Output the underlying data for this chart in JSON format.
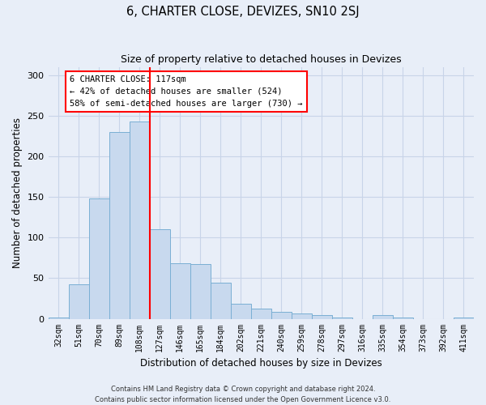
{
  "title": "6, CHARTER CLOSE, DEVIZES, SN10 2SJ",
  "subtitle": "Size of property relative to detached houses in Devizes",
  "xlabel": "Distribution of detached houses by size in Devizes",
  "ylabel": "Number of detached properties",
  "categories": [
    "32sqm",
    "51sqm",
    "70sqm",
    "89sqm",
    "108sqm",
    "127sqm",
    "146sqm",
    "165sqm",
    "184sqm",
    "202sqm",
    "221sqm",
    "240sqm",
    "259sqm",
    "278sqm",
    "297sqm",
    "316sqm",
    "335sqm",
    "354sqm",
    "373sqm",
    "392sqm",
    "411sqm"
  ],
  "values": [
    2,
    42,
    148,
    230,
    243,
    110,
    68,
    67,
    44,
    19,
    13,
    9,
    7,
    5,
    2,
    0,
    5,
    2,
    0,
    0,
    2
  ],
  "bar_color": "#c8d9ee",
  "bar_edge_color": "#7aafd4",
  "vline_index": 5,
  "vline_color": "red",
  "annotation_title": "6 CHARTER CLOSE: 117sqm",
  "annotation_line1": "← 42% of detached houses are smaller (524)",
  "annotation_line2": "58% of semi-detached houses are larger (730) →",
  "ylim": [
    0,
    310
  ],
  "yticks": [
    0,
    50,
    100,
    150,
    200,
    250,
    300
  ],
  "grid_color": "#c8d4e8",
  "bg_color": "#e8eef8",
  "fig_bg_color": "#e8eef8",
  "footer1": "Contains HM Land Registry data © Crown copyright and database right 2024.",
  "footer2": "Contains public sector information licensed under the Open Government Licence v3.0."
}
